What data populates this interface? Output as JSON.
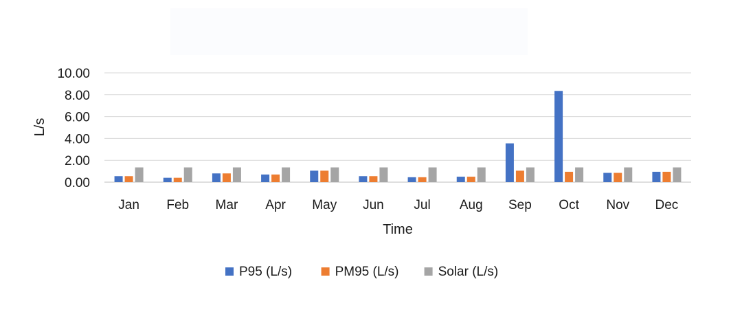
{
  "chart_data": {
    "type": "bar",
    "title": "",
    "xlabel": "Time",
    "ylabel": "L/s",
    "ylim": [
      0,
      10
    ],
    "yticks": [
      "0.00",
      "2.00",
      "4.00",
      "6.00",
      "8.00",
      "10.00"
    ],
    "ytick_values": [
      0,
      2,
      4,
      6,
      8,
      10
    ],
    "grid": true,
    "legend_position": "bottom",
    "categories": [
      "Jan",
      "Feb",
      "Mar",
      "Apr",
      "May",
      "Jun",
      "Jul",
      "Aug",
      "Sep",
      "Oct",
      "Nov",
      "Dec"
    ],
    "series": [
      {
        "name": "P95 (L/s)",
        "color": "#4472c4",
        "values": [
          0.55,
          0.4,
          0.8,
          0.7,
          1.05,
          0.55,
          0.45,
          0.5,
          3.55,
          8.35,
          0.85,
          0.95
        ]
      },
      {
        "name": "PM95 (L/s)",
        "color": "#ed7d31",
        "values": [
          0.55,
          0.4,
          0.8,
          0.7,
          1.05,
          0.55,
          0.45,
          0.5,
          1.05,
          0.95,
          0.85,
          0.95
        ]
      },
      {
        "name": "Solar (L/s)",
        "color": "#a5a5a5",
        "values": [
          1.35,
          1.35,
          1.35,
          1.35,
          1.35,
          1.35,
          1.35,
          1.35,
          1.35,
          1.35,
          1.35,
          1.35
        ]
      }
    ]
  }
}
